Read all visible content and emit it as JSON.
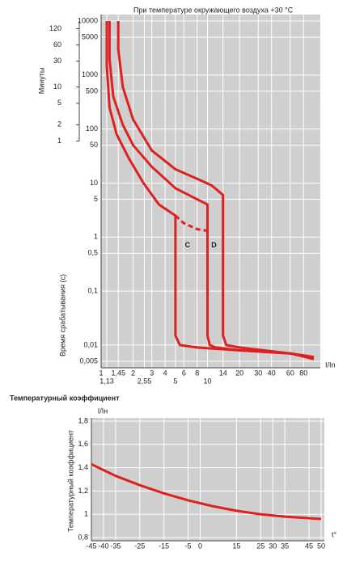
{
  "charts": [
    {
      "chart_data": {
        "type": "line",
        "title": "При температуре окружающего воздуха +30 °C",
        "xlabel": "I/In",
        "ylabel": "Время срабатывания (с)",
        "y3label": "Минуты",
        "log_x": true,
        "log_y": true,
        "grid": true,
        "xlim": [
          1,
          100
        ],
        "ylim": [
          0.005,
          10000
        ],
        "xticks": [
          1,
          {
            "value": 1.13,
            "label": "1,13"
          },
          {
            "value": 1.45,
            "label": "1,45"
          },
          2,
          {
            "value": 2.55,
            "label": "2,55"
          },
          3,
          4,
          5,
          6,
          8,
          10,
          14,
          20,
          30,
          40,
          60,
          80
        ],
        "yticks": [
          10000,
          5000,
          1000,
          500,
          100,
          50,
          10,
          5,
          1,
          {
            "value": 0.5,
            "label": "0,5"
          },
          {
            "value": 0.1,
            "label": "0,1"
          },
          {
            "value": 0.01,
            "label": "0,01"
          },
          {
            "value": 0.005,
            "label": "0,005"
          }
        ],
        "y3ticks": [
          120,
          60,
          30,
          10,
          5,
          2,
          1
        ],
        "annotations": [
          {
            "text": "C",
            "x": 6.5,
            "y": 0.7
          },
          {
            "text": "D",
            "x": 11.5,
            "y": 0.7
          }
        ],
        "series": [
          {
            "color": "#e02020",
            "x": [
              1.13,
              1.13,
              1.2,
              1.4,
              1.8,
              2.5,
              3.5,
              5,
              5,
              5.5,
              8,
              20,
              60,
              100
            ],
            "values": [
              10000,
              1500,
              250,
              80,
              30,
              10,
              4,
              2.5,
              0.015,
              0.01,
              0.009,
              0.008,
              0.007,
              0.006
            ]
          },
          {
            "color": "#e02020",
            "dashed": true,
            "x": [
              5,
              6,
              8,
              10
            ],
            "values": [
              2.5,
              1.8,
              1.4,
              1.3
            ]
          },
          {
            "color": "#e02020",
            "x": [
              1.2,
              1.2,
              1.3,
              1.6,
              2,
              3,
              5,
              8,
              10,
              10,
              10.5,
              12,
              20,
              60,
              100
            ],
            "values": [
              10000,
              2000,
              400,
              120,
              50,
              20,
              8,
              5,
              4,
              0.015,
              0.01,
              0.009,
              0.008,
              0.007,
              0.006
            ]
          },
          {
            "color": "#e02020",
            "x": [
              1.45,
              1.45,
              1.6,
              2,
              3,
              5,
              8,
              11,
              14,
              14,
              15,
              20,
              60,
              100
            ],
            "values": [
              10000,
              3000,
              600,
              150,
              40,
              18,
              12,
              9,
              6,
              0.015,
              0.01,
              0.009,
              0.007,
              0.0055
            ]
          }
        ]
      }
    },
    {
      "chart_data": {
        "type": "line",
        "title": "Температурный коэффициент",
        "xlabel": "t°",
        "ylabel": "Температурный коэффициент",
        "yunit": "I/Iн",
        "grid": true,
        "xlim": [
          -45,
          50
        ],
        "ylim": [
          0.8,
          1.8
        ],
        "xticks": [
          -45,
          -40,
          -35,
          -25,
          -15,
          -5,
          0,
          15,
          25,
          30,
          35,
          45,
          50
        ],
        "yticks": [
          {
            "value": 0.8,
            "label": "0,8"
          },
          1,
          {
            "value": 1.2,
            "label": "1,2"
          },
          {
            "value": 1.4,
            "label": "1,4"
          },
          {
            "value": 1.6,
            "label": "1,6"
          },
          {
            "value": 1.8,
            "label": "1,8"
          }
        ],
        "series": [
          {
            "color": "#e02020",
            "x": [
              -45,
              -35,
              -25,
              -15,
              -5,
              5,
              15,
              25,
              35,
              50
            ],
            "values": [
              1.43,
              1.33,
              1.25,
              1.18,
              1.12,
              1.07,
              1.03,
              1.0,
              0.98,
              0.96
            ]
          }
        ]
      }
    }
  ]
}
